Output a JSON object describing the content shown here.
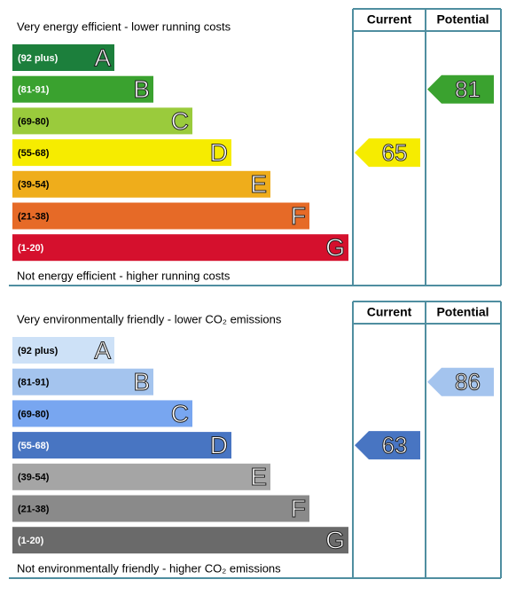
{
  "chart_data": [
    {
      "type": "epc",
      "top_label": "Very energy efficient - lower running costs",
      "bottom_label": "Not energy efficient - higher running costs",
      "column_headers": [
        "Current",
        "Potential"
      ],
      "bands": [
        {
          "range": "(92 plus)",
          "letter": "A",
          "color": "#1c7f3c"
        },
        {
          "range": "(81-91)",
          "letter": "B",
          "color": "#3aa22f"
        },
        {
          "range": "(69-80)",
          "letter": "C",
          "color": "#9acb3c"
        },
        {
          "range": "(55-68)",
          "letter": "D",
          "color": "#f6ec00"
        },
        {
          "range": "(39-54)",
          "letter": "E",
          "color": "#efad1b"
        },
        {
          "range": "(21-38)",
          "letter": "F",
          "color": "#e66a27"
        },
        {
          "range": "(1-20)",
          "letter": "G",
          "color": "#d5102d"
        }
      ],
      "current": 65,
      "potential": 81
    },
    {
      "type": "epc",
      "top_label": "Very environmentally friendly - lower CO₂ emissions",
      "bottom_label": "Not environmentally friendly - higher CO₂ emissions",
      "column_headers": [
        "Current",
        "Potential"
      ],
      "bands": [
        {
          "range": "(92 plus)",
          "letter": "A",
          "color": "#cde1f7"
        },
        {
          "range": "(81-91)",
          "letter": "B",
          "color": "#a4c4ee"
        },
        {
          "range": "(69-80)",
          "letter": "C",
          "color": "#78a6f0"
        },
        {
          "range": "(55-68)",
          "letter": "D",
          "color": "#4875c2"
        },
        {
          "range": "(39-54)",
          "letter": "E",
          "color": "#a5a5a5"
        },
        {
          "range": "(21-38)",
          "letter": "F",
          "color": "#8a8a8a"
        },
        {
          "range": "(1-20)",
          "letter": "G",
          "color": "#6a6a6a"
        }
      ],
      "current": 63,
      "potential": 86
    }
  ]
}
